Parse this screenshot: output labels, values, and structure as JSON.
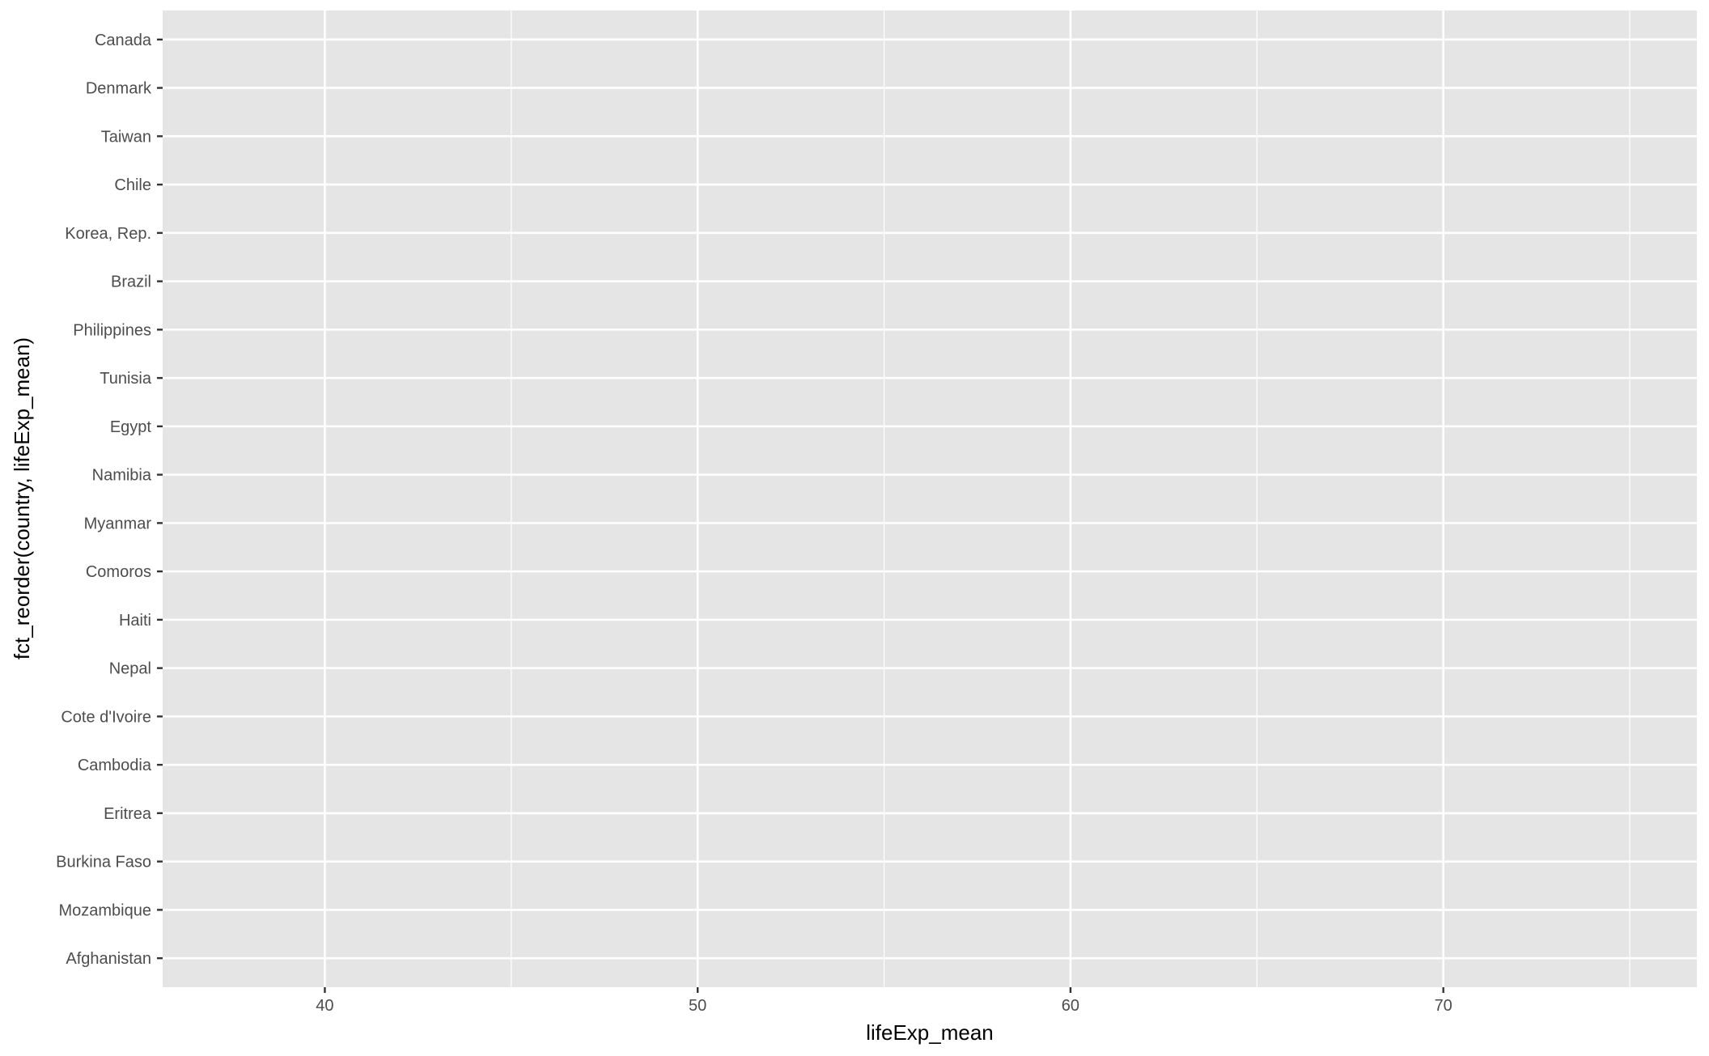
{
  "chart_data": {
    "type": "scatter",
    "title": "",
    "xlabel": "lifeExp_mean",
    "ylabel": "fct_reorder(country, lifeExp_mean)",
    "xlim": [
      35.65,
      76.8
    ],
    "x_ticks": [
      40,
      50,
      60,
      70
    ],
    "x_tick_labels": [
      "40",
      "50",
      "60",
      "70"
    ],
    "x_minor_ticks": [
      45,
      55,
      65,
      75
    ],
    "categories": [
      "Afghanistan",
      "Mozambique",
      "Burkina Faso",
      "Eritrea",
      "Cambodia",
      "Cote d'Ivoire",
      "Nepal",
      "Haiti",
      "Comoros",
      "Myanmar",
      "Namibia",
      "Egypt",
      "Tunisia",
      "Philippines",
      "Brazil",
      "Korea, Rep.",
      "Chile",
      "Taiwan",
      "Denmark",
      "Canada"
    ],
    "points": [],
    "grid": true,
    "legend": "none",
    "colors": {
      "panel": "#e5e5e5",
      "grid": "#ffffff",
      "tick_text": "#4d4d4d",
      "tick_mark": "#333333"
    }
  }
}
